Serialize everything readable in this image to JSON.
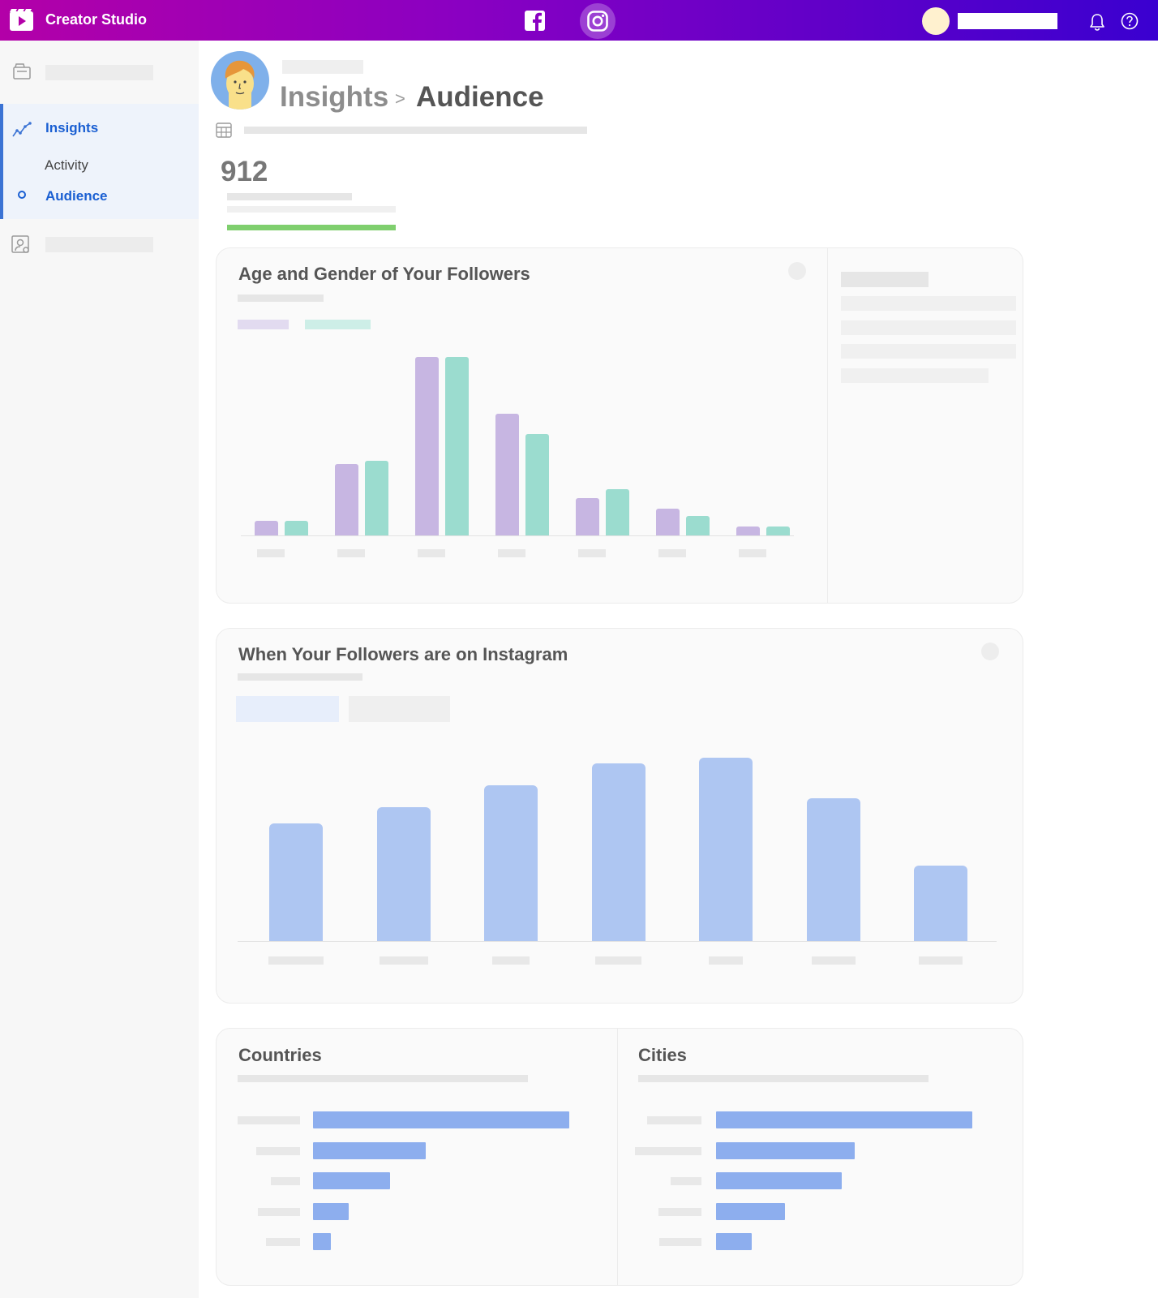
{
  "app": {
    "title": "Creator Studio",
    "gradient_colors": [
      "#b300a8",
      "#3a00d0"
    ]
  },
  "topbar": {
    "platforms": [
      "facebook-icon",
      "instagram-icon"
    ],
    "active_platform": "instagram-icon",
    "icons": [
      "bell-icon",
      "help-icon"
    ]
  },
  "sidebar": {
    "insights_label": "Insights",
    "activity_label": "Activity",
    "audience_label": "Audience",
    "active_color": "#1a5fd2"
  },
  "breadcrumb": {
    "parent": "Insights",
    "separator": ">",
    "current": "Audience"
  },
  "stat": {
    "value": "912",
    "accent": "#7fcf6e"
  },
  "age_gender_card": {
    "title": "Age and Gender of Your Followers",
    "series_colors": [
      "#c7b6e2",
      "#9bdccf"
    ],
    "chart_data": {
      "type": "bar",
      "series": [
        {
          "values": [
            8,
            40,
            100,
            68,
            21,
            15,
            5
          ]
        },
        {
          "values": [
            8,
            42,
            100,
            57,
            26,
            11,
            5
          ]
        }
      ],
      "ylim": [
        0,
        100
      ]
    }
  },
  "when_card": {
    "title": "When Your Followers are on Instagram",
    "bar_color": "#aec6f2",
    "chart_data": {
      "type": "bar",
      "values": [
        64,
        73,
        85,
        97,
        100,
        78,
        41
      ],
      "ylim": [
        0,
        100
      ]
    }
  },
  "countries_card": {
    "title": "Countries",
    "chart_data": {
      "type": "bar",
      "orientation": "horizontal",
      "values": [
        100,
        44,
        30,
        14,
        7
      ],
      "xlim": [
        0,
        100
      ]
    }
  },
  "cities_card": {
    "title": "Cities",
    "chart_data": {
      "type": "bar",
      "orientation": "horizontal",
      "values": [
        100,
        54,
        49,
        27,
        14
      ],
      "xlim": [
        0,
        100
      ]
    }
  }
}
